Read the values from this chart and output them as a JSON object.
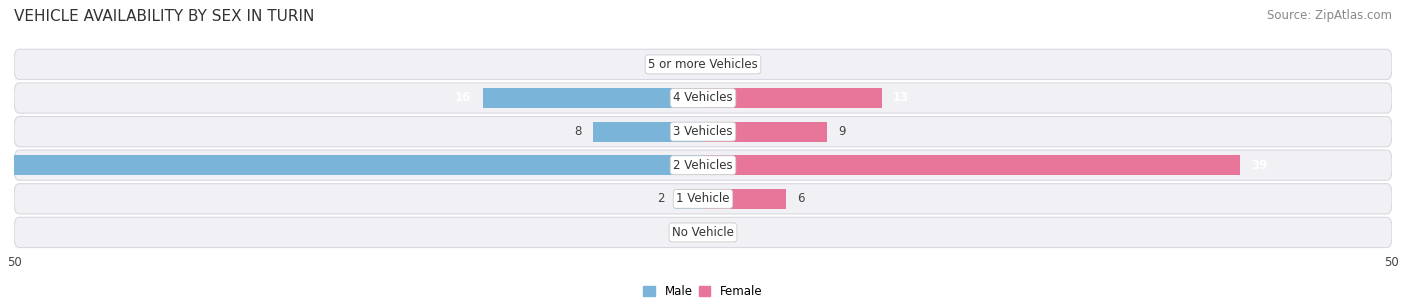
{
  "title": "VEHICLE AVAILABILITY BY SEX IN TURIN",
  "source": "Source: ZipAtlas.com",
  "categories": [
    "No Vehicle",
    "1 Vehicle",
    "2 Vehicles",
    "3 Vehicles",
    "4 Vehicles",
    "5 or more Vehicles"
  ],
  "male_values": [
    0,
    2,
    50,
    8,
    16,
    0
  ],
  "female_values": [
    0,
    6,
    39,
    9,
    13,
    0
  ],
  "male_color": "#7ab4d8",
  "female_color": "#e8759a",
  "male_label": "Male",
  "female_label": "Female",
  "xlim": 50,
  "bar_height": 0.6,
  "bg_color": "#ffffff",
  "row_bg_color": "#f0f0f5",
  "row_border_color": "#d8d8e0",
  "title_fontsize": 11,
  "source_fontsize": 8.5,
  "label_fontsize": 8.5,
  "value_fontsize": 8.5,
  "cat_fontsize": 8.5
}
